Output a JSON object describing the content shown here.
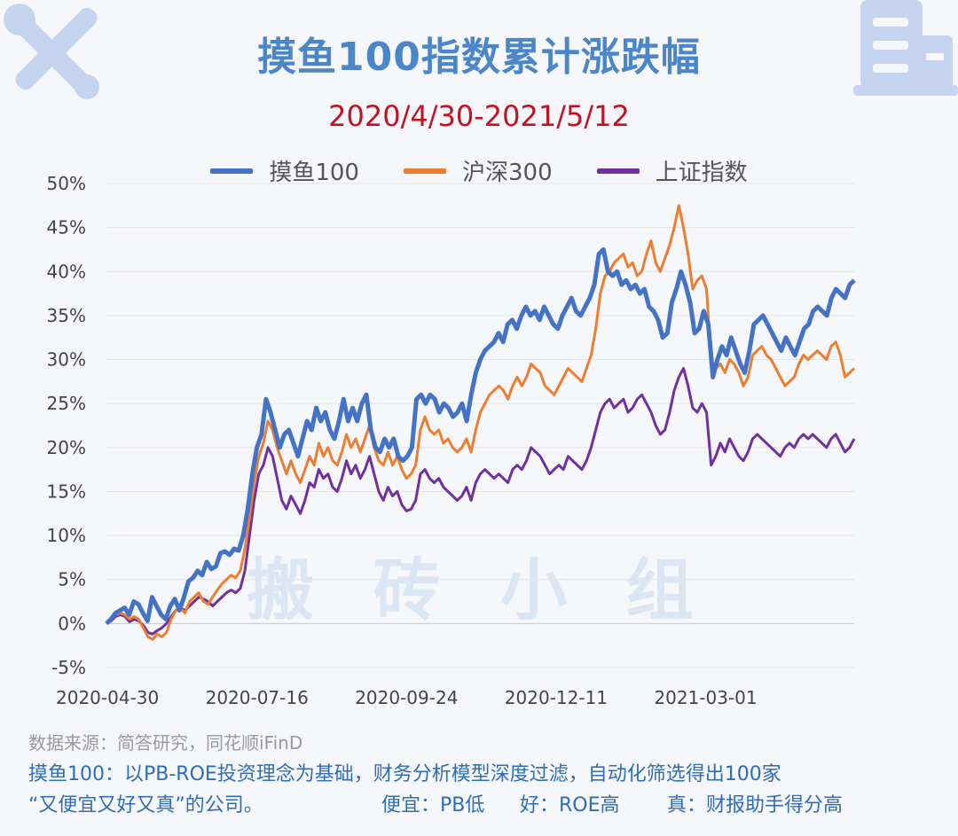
{
  "title": "摸鱼100指数累计涨跌幅",
  "subtitle": "2020/4/30-2021/5/12",
  "legend": [
    {
      "label": "摸鱼100",
      "color": "#4472c4"
    },
    {
      "label": "沪深300",
      "color": "#ed7d31"
    },
    {
      "label": "上证指数",
      "color": "#7030a0"
    }
  ],
  "watermark": "搬 砖 小 组",
  "source": "数据来源：简答研究，同花顺iFinD",
  "description_line1": "摸鱼100：以PB-ROE投资理念为基础，财务分析模型深度过滤，自动化筛选得出100家",
  "description_line2_a": "“又便宜又好又真”的公司。",
  "description_line2_b": "便宜：PB低",
  "description_line2_c": "好：ROE高",
  "description_line2_d": "真：财报助手得分高",
  "chart_data": {
    "type": "line",
    "ylim": [
      -5,
      50
    ],
    "y_ticks": [
      "50%",
      "45%",
      "40%",
      "35%",
      "30%",
      "25%",
      "20%",
      "15%",
      "10%",
      "5%",
      "0%",
      "-5%"
    ],
    "x_ticks": [
      "2020-04-30",
      "2020-07-16",
      "2020-09-24",
      "2020-12-11",
      "2021-03-01"
    ],
    "x_tick_pos": [
      0,
      0.2,
      0.4,
      0.6,
      0.8
    ],
    "grid": true,
    "legend_position": "top",
    "series": [
      {
        "name": "摸鱼100",
        "values": [
          0,
          0.5,
          1.2,
          1.5,
          1.8,
          1.0,
          2.5,
          2.2,
          1.2,
          0.3,
          3.0,
          2.0,
          1.0,
          0.5,
          2.0,
          2.8,
          1.5,
          3.0,
          4.8,
          5.2,
          6.0,
          5.5,
          7.0,
          6.2,
          6.5,
          8.0,
          8.2,
          7.8,
          8.5,
          8.3,
          10.0,
          13.0,
          17.0,
          20.0,
          21.5,
          25.5,
          24.0,
          22.0,
          20.0,
          21.5,
          22.0,
          20.5,
          19.0,
          21.0,
          23.0,
          22.0,
          24.5,
          23.0,
          24.0,
          22.0,
          21.0,
          23.0,
          25.5,
          23.0,
          24.5,
          23.0,
          25.0,
          26.0,
          22.0,
          20.0,
          19.5,
          21.0,
          20.0,
          21.0,
          19.0,
          18.5,
          19.0,
          20.0,
          25.5,
          26.0,
          25.0,
          26.0,
          25.5,
          24.0,
          25.0,
          24.5,
          23.5,
          24.0,
          25.0,
          23.0,
          26.0,
          28.5,
          30.0,
          31.0,
          31.5,
          32.0,
          33.0,
          32.0,
          34.0,
          34.5,
          33.5,
          35.0,
          36.0,
          35.0,
          35.5,
          34.5,
          36.0,
          35.0,
          34.0,
          33.5,
          35.0,
          36.0,
          37.0,
          35.5,
          35.0,
          36.0,
          37.0,
          38.5,
          42.0,
          42.5,
          40.0,
          39.5,
          40.0,
          38.5,
          39.0,
          38.0,
          38.5,
          37.5,
          38.0,
          36.0,
          35.5,
          34.5,
          32.5,
          33.0,
          36.5,
          38.0,
          40.0,
          38.5,
          36.5,
          33.0,
          33.5,
          35.5,
          34.0,
          28.0,
          30.0,
          31.5,
          30.5,
          32.5,
          31.0,
          29.5,
          28.5,
          31.0,
          34.0,
          34.5,
          35.0,
          34.0,
          33.0,
          32.0,
          31.0,
          32.5,
          31.5,
          30.5,
          32.0,
          33.5,
          34.0,
          35.5,
          36.0,
          35.5,
          35.0,
          37.0,
          38.0,
          37.5,
          37.0,
          38.5,
          39.0
        ]
      },
      {
        "name": "沪深300",
        "values": [
          0,
          0.4,
          1.0,
          1.2,
          1.0,
          0.5,
          0.8,
          0.5,
          -0.5,
          -1.5,
          -1.8,
          -1.2,
          -1.5,
          -1.0,
          0.5,
          1.5,
          1.8,
          1.2,
          2.5,
          3.0,
          3.5,
          2.5,
          2.2,
          3.0,
          3.8,
          4.5,
          5.0,
          5.5,
          5.2,
          6.0,
          8.5,
          12.0,
          16.0,
          19.0,
          20.5,
          23.0,
          22.0,
          20.0,
          18.5,
          17.0,
          18.5,
          17.0,
          16.0,
          17.5,
          19.0,
          18.0,
          20.5,
          19.0,
          20.0,
          18.5,
          18.0,
          19.5,
          21.5,
          20.0,
          21.0,
          19.5,
          21.0,
          22.5,
          20.0,
          18.5,
          18.0,
          19.5,
          18.0,
          19.0,
          17.5,
          16.5,
          17.0,
          18.0,
          22.0,
          23.5,
          22.0,
          21.5,
          22.0,
          20.5,
          21.0,
          20.0,
          19.5,
          20.0,
          21.0,
          19.5,
          22.0,
          24.0,
          25.0,
          26.0,
          26.5,
          27.0,
          26.5,
          25.5,
          27.0,
          28.0,
          27.0,
          28.0,
          29.5,
          29.0,
          28.5,
          27.0,
          26.5,
          26.0,
          27.0,
          28.0,
          29.0,
          28.5,
          28.0,
          27.5,
          29.0,
          30.5,
          33.5,
          37.5,
          39.5,
          40.0,
          41.0,
          41.5,
          42.0,
          40.5,
          41.0,
          39.5,
          40.0,
          42.0,
          43.5,
          41.0,
          40.0,
          41.5,
          43.0,
          45.0,
          47.5,
          45.0,
          42.0,
          38.0,
          39.0,
          39.5,
          38.0,
          30.0,
          29.0,
          29.5,
          28.5,
          30.0,
          29.5,
          28.5,
          27.0,
          28.0,
          30.5,
          31.0,
          31.5,
          30.5,
          30.0,
          29.0,
          28.0,
          27.0,
          27.5,
          28.0,
          29.5,
          30.5,
          30.0,
          30.5,
          31.0,
          30.5,
          30.0,
          31.5,
          32.0,
          30.5,
          28.0,
          28.5,
          29.0
        ]
      },
      {
        "name": "上证指数",
        "values": [
          0,
          0.3,
          0.8,
          1.0,
          0.8,
          0.2,
          0.5,
          0.3,
          -0.2,
          -1.0,
          -1.2,
          -0.8,
          -0.5,
          0.0,
          0.8,
          1.5,
          1.8,
          1.5,
          2.0,
          2.5,
          3.0,
          2.8,
          2.5,
          2.0,
          2.5,
          3.0,
          3.5,
          3.8,
          3.5,
          4.0,
          6.0,
          10.0,
          14.0,
          17.0,
          18.0,
          20.0,
          19.0,
          16.5,
          14.0,
          13.0,
          14.5,
          13.5,
          12.5,
          14.0,
          16.0,
          15.5,
          17.5,
          16.5,
          17.0,
          15.5,
          15.0,
          16.5,
          18.5,
          17.0,
          18.0,
          16.5,
          17.5,
          19.0,
          17.0,
          15.0,
          14.0,
          15.5,
          14.5,
          15.0,
          13.5,
          12.8,
          13.0,
          14.0,
          17.0,
          17.5,
          16.5,
          16.0,
          16.5,
          15.5,
          15.0,
          14.5,
          14.0,
          14.5,
          15.5,
          14.0,
          16.0,
          17.0,
          17.5,
          17.0,
          16.5,
          17.0,
          16.5,
          16.0,
          17.5,
          18.0,
          17.5,
          18.5,
          20.0,
          19.5,
          19.0,
          18.0,
          17.0,
          17.5,
          18.0,
          17.5,
          19.0,
          18.5,
          18.0,
          17.5,
          18.5,
          20.0,
          22.0,
          24.0,
          25.0,
          25.5,
          24.5,
          25.0,
          25.5,
          24.0,
          24.5,
          25.5,
          26.0,
          25.0,
          24.0,
          22.5,
          21.5,
          22.0,
          24.0,
          26.5,
          28.0,
          29.0,
          27.0,
          24.5,
          24.0,
          25.0,
          24.0,
          18.0,
          19.0,
          20.5,
          19.5,
          21.0,
          20.0,
          19.0,
          18.5,
          19.5,
          21.0,
          21.5,
          21.0,
          20.5,
          20.0,
          19.5,
          19.0,
          20.0,
          20.5,
          20.0,
          21.0,
          21.5,
          21.0,
          21.5,
          21.0,
          20.5,
          20.0,
          21.0,
          21.5,
          20.5,
          19.5,
          20.0,
          21.0
        ]
      }
    ]
  }
}
